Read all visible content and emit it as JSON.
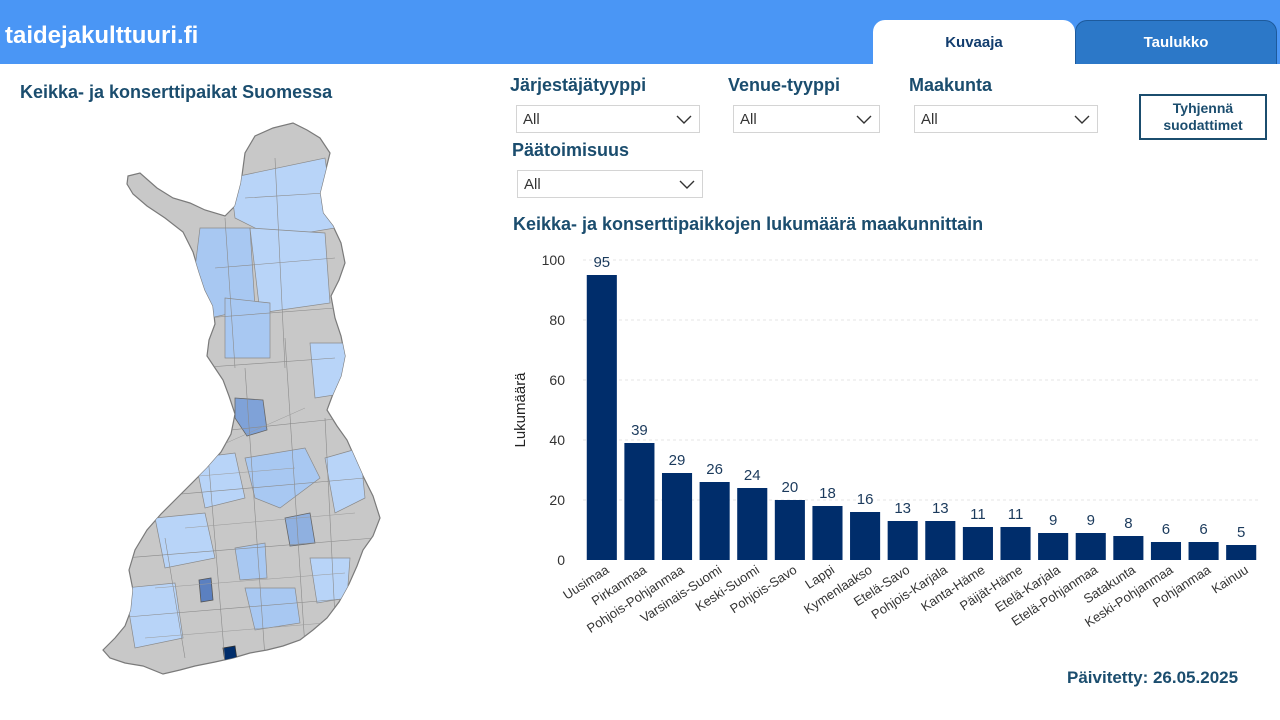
{
  "header": {
    "site_title": "taidejakulttuuri.fi",
    "tabs": [
      {
        "label": "Kuvaaja",
        "active": true
      },
      {
        "label": "Taulukko",
        "active": false
      }
    ],
    "colors": {
      "bar": "#4a96f5",
      "active_tab": "#ffffff",
      "inactive_tab": "#2c78c8"
    }
  },
  "map": {
    "title": "Keikka- ja konserttipaikat Suomessa"
  },
  "filters": {
    "organizer_type": {
      "label": "Järjestäjätyyppi",
      "value": "All"
    },
    "venue_type": {
      "label": "Venue-tyyppi",
      "value": "All"
    },
    "region": {
      "label": "Maakunta",
      "value": "All"
    },
    "full_time": {
      "label": "Päätoimisuus",
      "value": "All"
    },
    "clear_button": "Tyhjennä suodattimet",
    "chevron_icon": "chevron-down-icon"
  },
  "chart_data": {
    "type": "bar",
    "title": "Keikka- ja konserttipaikkojen lukumäärä maakunnittain",
    "ylabel": "Lukumäärä",
    "xlabel": "",
    "categories": [
      "Uusimaa",
      "Pirkanmaa",
      "Pohjois-Pohjanmaa",
      "Varsinais-Suomi",
      "Keski-Suomi",
      "Pohjois-Savo",
      "Lappi",
      "Kymenlaakso",
      "Etelä-Savo",
      "Pohjois-Karjala",
      "Kanta-Häme",
      "Päijät-Häme",
      "Etelä-Karjala",
      "Etelä-Pohjanmaa",
      "Satakunta",
      "Keski-Pohjanmaa",
      "Pohjanmaa",
      "Kainuu"
    ],
    "values": [
      95,
      39,
      29,
      26,
      24,
      20,
      18,
      16,
      13,
      13,
      11,
      11,
      9,
      9,
      8,
      6,
      6,
      5
    ],
    "ylim": [
      0,
      100
    ],
    "yticks": [
      0,
      20,
      40,
      60,
      80,
      100
    ],
    "grid": true,
    "bar_color": "#002d6b"
  },
  "footer": {
    "updated": "Päivitetty: 26.05.2025"
  }
}
